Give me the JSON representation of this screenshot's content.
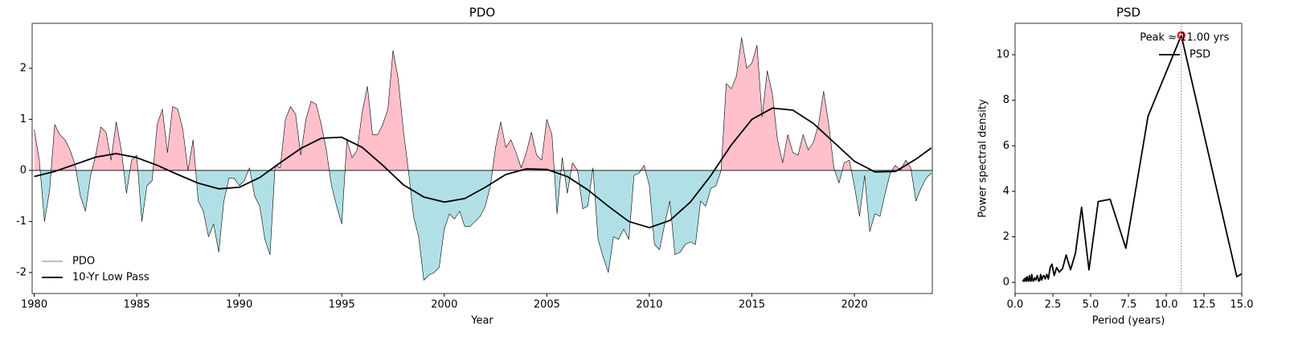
{
  "chart_data": [
    {
      "type": "line",
      "title": "PDO",
      "x_label": "Year",
      "xlim": [
        1979.9,
        2023.8
      ],
      "ylim": [
        -2.41,
        2.88
      ],
      "xticks": [
        1980,
        1985,
        1990,
        1995,
        2000,
        2005,
        2010,
        2015,
        2020
      ],
      "yticks": [
        -2,
        -1,
        0,
        1,
        2
      ],
      "legend": "lower left",
      "fill_colors": {
        "positive": "#ffc0cb",
        "negative": "#b0e0e6"
      },
      "series": [
        {
          "name": "PDO",
          "color": "#000000",
          "width": 0.6,
          "fill": true,
          "x": [
            1980,
            1980.25,
            1980.5,
            1980.75,
            1981,
            1981.25,
            1981.5,
            1981.75,
            1982,
            1982.25,
            1982.5,
            1982.75,
            1983,
            1983.25,
            1983.5,
            1983.75,
            1984,
            1984.25,
            1984.5,
            1984.75,
            1985,
            1985.25,
            1985.5,
            1985.75,
            1986,
            1986.25,
            1986.5,
            1986.75,
            1987,
            1987.25,
            1987.5,
            1987.75,
            1988,
            1988.25,
            1988.5,
            1988.75,
            1989,
            1989.25,
            1989.5,
            1989.75,
            1990,
            1990.25,
            1990.5,
            1990.75,
            1991,
            1991.25,
            1991.5,
            1991.75,
            1992,
            1992.25,
            1992.5,
            1992.75,
            1993,
            1993.25,
            1993.5,
            1993.75,
            1994,
            1994.25,
            1994.5,
            1994.75,
            1995,
            1995.25,
            1995.5,
            1995.75,
            1996,
            1996.25,
            1996.5,
            1996.75,
            1997,
            1997.25,
            1997.5,
            1997.75,
            1998,
            1998.25,
            1998.5,
            1998.75,
            1999,
            1999.25,
            1999.5,
            1999.75,
            2000,
            2000.25,
            2000.5,
            2000.75,
            2001,
            2001.25,
            2001.5,
            2001.75,
            2002,
            2002.25,
            2002.5,
            2002.75,
            2003,
            2003.25,
            2003.5,
            2003.75,
            2004,
            2004.25,
            2004.5,
            2004.75,
            2005,
            2005.25,
            2005.5,
            2005.75,
            2006,
            2006.25,
            2006.5,
            2006.75,
            2007,
            2007.25,
            2007.5,
            2007.75,
            2008,
            2008.25,
            2008.5,
            2008.75,
            2009,
            2009.25,
            2009.5,
            2009.75,
            2010,
            2010.25,
            2010.5,
            2010.75,
            2011,
            2011.25,
            2011.5,
            2011.75,
            2012,
            2012.25,
            2012.5,
            2012.75,
            2013,
            2013.25,
            2013.5,
            2013.75,
            2014,
            2014.25,
            2014.5,
            2014.75,
            2015,
            2015.25,
            2015.5,
            2015.75,
            2016,
            2016.25,
            2016.5,
            2016.75,
            2017,
            2017.25,
            2017.5,
            2017.75,
            2018,
            2018.25,
            2018.5,
            2018.75,
            2019,
            2019.25,
            2019.5,
            2019.75,
            2020,
            2020.25,
            2020.5,
            2020.75,
            2021,
            2021.25,
            2021.5,
            2021.75,
            2022,
            2022.25,
            2022.5,
            2022.75,
            2023,
            2023.25,
            2023.5,
            2023.75
          ],
          "values": [
            0.8,
            0.2,
            -1.0,
            -0.4,
            0.9,
            0.7,
            0.6,
            0.4,
            0.1,
            -0.5,
            -0.8,
            -0.1,
            0.3,
            0.85,
            0.75,
            0.2,
            0.95,
            0.4,
            -0.45,
            0.2,
            0.3,
            -1.0,
            -0.3,
            -0.2,
            0.9,
            1.2,
            0.35,
            1.25,
            1.2,
            0.8,
            0.0,
            0.6,
            -0.6,
            -0.8,
            -1.3,
            -1.05,
            -1.6,
            -0.6,
            -0.15,
            -0.15,
            -0.3,
            -0.2,
            0.05,
            -0.5,
            -0.7,
            -1.35,
            -1.65,
            0.1,
            0.05,
            1.0,
            1.25,
            1.1,
            0.3,
            1.0,
            1.35,
            1.3,
            0.9,
            0.4,
            -0.3,
            -0.7,
            -1.05,
            0.6,
            0.25,
            0.4,
            1.15,
            1.65,
            0.7,
            0.7,
            0.9,
            1.2,
            2.35,
            1.8,
            0.8,
            0.0,
            -0.9,
            -1.3,
            -2.15,
            -2.05,
            -2.0,
            -1.9,
            -1.15,
            -0.85,
            -0.95,
            -0.8,
            -1.1,
            -1.1,
            -1.0,
            -0.9,
            -0.7,
            -0.3,
            0.45,
            0.95,
            0.45,
            0.6,
            0.35,
            0.05,
            0.35,
            0.75,
            0.3,
            0.2,
            1.0,
            0.7,
            -0.85,
            0.25,
            -0.45,
            0.15,
            0.0,
            -0.75,
            -0.7,
            0.05,
            -1.35,
            -1.7,
            -2.0,
            -1.3,
            -1.35,
            -1.15,
            -1.35,
            -0.1,
            -0.05,
            0.1,
            -0.3,
            -1.45,
            -1.55,
            -1.05,
            -0.6,
            -1.65,
            -1.6,
            -1.45,
            -1.4,
            -1.45,
            -0.6,
            -0.7,
            -0.35,
            -0.3,
            0.0,
            1.7,
            1.6,
            1.85,
            2.6,
            2.0,
            2.1,
            2.45,
            1.05,
            1.95,
            1.5,
            0.6,
            0.15,
            0.7,
            0.35,
            0.3,
            0.7,
            0.4,
            0.55,
            0.9,
            1.55,
            0.9,
            0.05,
            -0.25,
            0.15,
            0.2,
            -0.3,
            -0.9,
            -0.1,
            -1.2,
            -0.85,
            -0.9,
            -0.45,
            -0.05,
            0.1,
            0.0,
            0.2,
            0.05,
            -0.6,
            -0.35,
            -0.15,
            -0.05
          ]
        },
        {
          "name": "10-Yr Low Pass",
          "color": "#000000",
          "width": 1.8,
          "x": [
            1980,
            1981,
            1982,
            1983,
            1984,
            1985,
            1986,
            1987,
            1988,
            1989,
            1990,
            1991,
            1992,
            1993,
            1994,
            1995,
            1996,
            1997,
            1998,
            1999,
            2000,
            2001,
            2002,
            2003,
            2004,
            2005,
            2006,
            2007,
            2008,
            2009,
            2010,
            2011,
            2012,
            2013,
            2014,
            2015,
            2016,
            2017,
            2018,
            2019,
            2020,
            2021,
            2022,
            2023,
            2023.75
          ],
          "values": [
            -0.12,
            -0.02,
            0.12,
            0.26,
            0.33,
            0.25,
            0.1,
            -0.08,
            -0.25,
            -0.36,
            -0.33,
            -0.14,
            0.15,
            0.43,
            0.63,
            0.65,
            0.45,
            0.1,
            -0.28,
            -0.52,
            -0.62,
            -0.55,
            -0.33,
            -0.08,
            0.03,
            0.02,
            -0.12,
            -0.38,
            -0.7,
            -1.0,
            -1.12,
            -0.98,
            -0.62,
            -0.1,
            0.5,
            1.0,
            1.22,
            1.18,
            0.92,
            0.55,
            0.18,
            -0.03,
            -0.02,
            0.22,
            0.44
          ]
        }
      ]
    },
    {
      "type": "line",
      "title": "PSD",
      "x_label": "Period (years)",
      "y_label": "Power spectral density",
      "xlim": [
        0,
        15
      ],
      "ylim": [
        -0.49,
        11.38
      ],
      "xticks": [
        {
          "value": 0,
          "label": "0.0"
        },
        {
          "value": 2.5,
          "label": "2.5"
        },
        {
          "value": 5,
          "label": "5.0"
        },
        {
          "value": 7.5,
          "label": "7.5"
        },
        {
          "value": 10,
          "label": "10.0"
        },
        {
          "value": 12.5,
          "label": "12.5"
        },
        {
          "value": 15,
          "label": "15.0"
        }
      ],
      "yticks": [
        0,
        2,
        4,
        6,
        8,
        10
      ],
      "legend": "upper right",
      "annotation": "Peak ≈ 11.00 yrs",
      "peak_color": "#d62728",
      "series": [
        {
          "name": "PSD",
          "color": "#000000",
          "width": 1.8,
          "x": [
            0.5,
            0.55,
            0.6,
            0.65,
            0.7,
            0.75,
            0.8,
            0.85,
            0.9,
            0.95,
            1.0,
            1.05,
            1.1,
            1.16,
            1.22,
            1.29,
            1.38,
            1.47,
            1.57,
            1.63,
            1.69,
            1.76,
            1.83,
            1.91,
            2.0,
            2.1,
            2.2,
            2.32,
            2.44,
            2.59,
            2.75,
            2.93,
            3.14,
            3.38,
            3.67,
            4.0,
            4.4,
            4.89,
            5.5,
            6.29,
            7.33,
            8.8,
            11.0,
            14.67,
            22.0
          ],
          "values": [
            0.1,
            0.05,
            0.15,
            0.05,
            0.2,
            0.05,
            0.25,
            0.1,
            0.05,
            0.3,
            0.1,
            0.05,
            0.35,
            0.1,
            0.05,
            0.2,
            0.1,
            0.3,
            0.05,
            0.1,
            0.35,
            0.1,
            0.25,
            0.3,
            0.15,
            0.35,
            0.15,
            0.65,
            0.8,
            0.3,
            0.65,
            0.45,
            0.6,
            1.2,
            0.55,
            1.3,
            3.3,
            0.55,
            3.55,
            3.65,
            1.5,
            7.3,
            10.85,
            0.25,
            3.0
          ]
        }
      ]
    }
  ]
}
